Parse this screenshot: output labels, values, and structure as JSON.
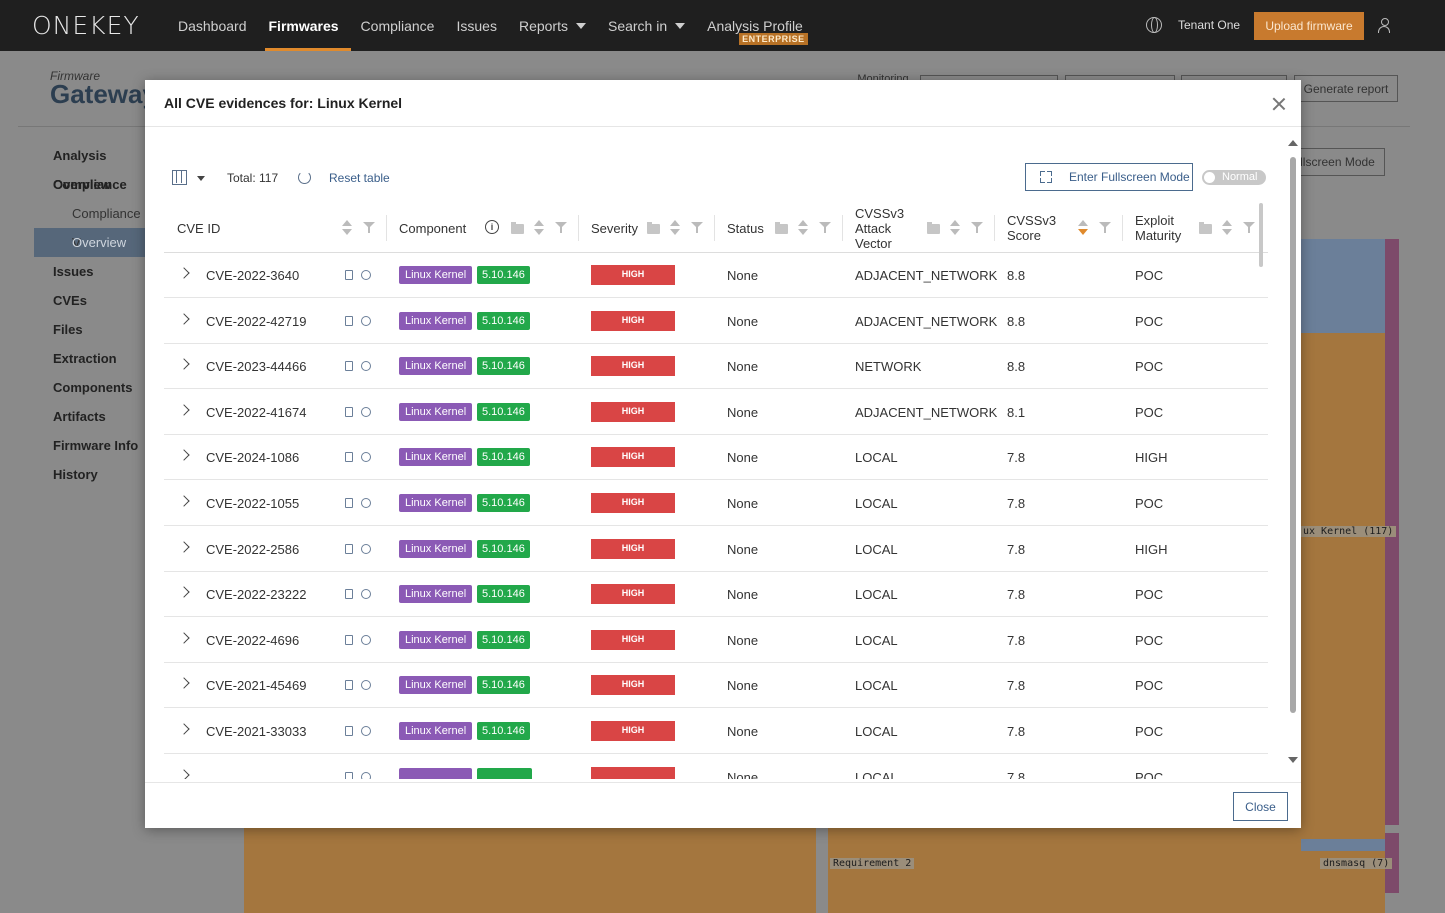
{
  "nav": {
    "logo": "ONEKEY",
    "items": [
      {
        "label": "Dashboard",
        "active": false,
        "dropdown": false
      },
      {
        "label": "Firmwares",
        "active": true,
        "dropdown": false
      },
      {
        "label": "Compliance",
        "active": false,
        "dropdown": false
      },
      {
        "label": "Issues",
        "active": false,
        "dropdown": false
      },
      {
        "label": "Reports",
        "active": false,
        "dropdown": true
      },
      {
        "label": "Search in",
        "active": false,
        "dropdown": true
      },
      {
        "label": "Analysis Profile",
        "active": false,
        "dropdown": false
      }
    ],
    "enterprise_badge": "ENTERPRISE",
    "tenant": "Tenant One",
    "upload_label": "Upload firmware"
  },
  "background": {
    "firmware_label": "Firmware",
    "firmware_title": "Gateway",
    "monitoring_label": "Monitoring",
    "generate_report_label": "Generate report",
    "fullscreen_label": "llscreen Mode",
    "sidebar": [
      {
        "label": "Analysis Overview",
        "sub": false,
        "selected": false
      },
      {
        "label": "Compliance",
        "sub": false,
        "selected": false
      },
      {
        "label": "Compliance V",
        "sub": true,
        "selected": false
      },
      {
        "label": "Overview",
        "sub": true,
        "selected": true
      },
      {
        "label": "Issues",
        "sub": false,
        "selected": false
      },
      {
        "label": "CVEs",
        "sub": false,
        "selected": false
      },
      {
        "label": "Files",
        "sub": false,
        "selected": false
      },
      {
        "label": "Extraction",
        "sub": false,
        "selected": false
      },
      {
        "label": "Components",
        "sub": false,
        "selected": false
      },
      {
        "label": "Artifacts",
        "sub": false,
        "selected": false
      },
      {
        "label": "Firmware Info",
        "sub": false,
        "selected": false
      },
      {
        "label": "History",
        "sub": false,
        "selected": false
      }
    ],
    "sankey_labels": {
      "kernel": "ux Kernel (117)",
      "requirement": "Requirement 2",
      "dnsmasq": "dnsmasq (7)"
    }
  },
  "modal": {
    "title": "All CVE evidences for: Linux Kernel",
    "total_label": "Total: 117",
    "reset_label": "Reset table",
    "fullscreen_label": "Enter Fullscreen Mode",
    "toggle_label": "Normal",
    "close_label": "Close",
    "columns": {
      "cve_id": "CVE ID",
      "component": "Component",
      "severity": "Severity",
      "status": "Status",
      "vector": "CVSSv3 Attack Vector",
      "score": "CVSSv3 Score",
      "maturity": "Exploit Maturity"
    },
    "rows": [
      {
        "cve": "CVE-2022-3640",
        "component": "Linux Kernel",
        "version": "5.10.146",
        "severity": "HIGH",
        "status": "None",
        "vector": "ADJACENT_NETWORK",
        "score": "8.8",
        "maturity": "POC"
      },
      {
        "cve": "CVE-2022-42719",
        "component": "Linux Kernel",
        "version": "5.10.146",
        "severity": "HIGH",
        "status": "None",
        "vector": "ADJACENT_NETWORK",
        "score": "8.8",
        "maturity": "POC"
      },
      {
        "cve": "CVE-2023-44466",
        "component": "Linux Kernel",
        "version": "5.10.146",
        "severity": "HIGH",
        "status": "None",
        "vector": "NETWORK",
        "score": "8.8",
        "maturity": "POC"
      },
      {
        "cve": "CVE-2022-41674",
        "component": "Linux Kernel",
        "version": "5.10.146",
        "severity": "HIGH",
        "status": "None",
        "vector": "ADJACENT_NETWORK",
        "score": "8.1",
        "maturity": "POC"
      },
      {
        "cve": "CVE-2024-1086",
        "component": "Linux Kernel",
        "version": "5.10.146",
        "severity": "HIGH",
        "status": "None",
        "vector": "LOCAL",
        "score": "7.8",
        "maturity": "HIGH"
      },
      {
        "cve": "CVE-2022-1055",
        "component": "Linux Kernel",
        "version": "5.10.146",
        "severity": "HIGH",
        "status": "None",
        "vector": "LOCAL",
        "score": "7.8",
        "maturity": "POC"
      },
      {
        "cve": "CVE-2022-2586",
        "component": "Linux Kernel",
        "version": "5.10.146",
        "severity": "HIGH",
        "status": "None",
        "vector": "LOCAL",
        "score": "7.8",
        "maturity": "HIGH"
      },
      {
        "cve": "CVE-2022-23222",
        "component": "Linux Kernel",
        "version": "5.10.146",
        "severity": "HIGH",
        "status": "None",
        "vector": "LOCAL",
        "score": "7.8",
        "maturity": "POC"
      },
      {
        "cve": "CVE-2022-4696",
        "component": "Linux Kernel",
        "version": "5.10.146",
        "severity": "HIGH",
        "status": "None",
        "vector": "LOCAL",
        "score": "7.8",
        "maturity": "POC"
      },
      {
        "cve": "CVE-2021-45469",
        "component": "Linux Kernel",
        "version": "5.10.146",
        "severity": "HIGH",
        "status": "None",
        "vector": "LOCAL",
        "score": "7.8",
        "maturity": "POC"
      },
      {
        "cve": "CVE-2021-33033",
        "component": "Linux Kernel",
        "version": "5.10.146",
        "severity": "HIGH",
        "status": "None",
        "vector": "LOCAL",
        "score": "7.8",
        "maturity": "POC"
      },
      {
        "cve": "",
        "component": "",
        "version": "",
        "severity": "",
        "status": "None",
        "vector": "LOCAL",
        "score": "7.8",
        "maturity": "POC"
      }
    ]
  },
  "colors": {
    "nav_bg": "#1f1f1f",
    "accent": "#e08a2c",
    "component_badge": "#8b5ab5",
    "version_badge": "#22a84a",
    "severity_high": "#d94545",
    "link": "#3a5e8a"
  }
}
